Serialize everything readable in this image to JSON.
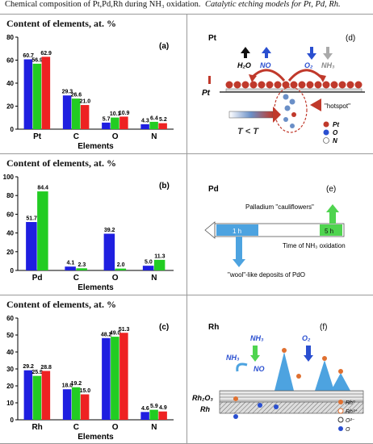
{
  "header": {
    "left": "Chemical composition of Pt,Pd,Rh during NH₃ oxidation.",
    "right": "Catalytic etching models for Pt, Pd, Rh."
  },
  "chart_data": [
    {
      "type": "bar",
      "panel": "(a)",
      "title": "Content of elements, at. %",
      "xlabel": "Elements",
      "categories": [
        "Pt",
        "C",
        "O",
        "N"
      ],
      "ylim": [
        0,
        80
      ],
      "yticks": [
        0,
        20,
        40,
        60,
        80
      ],
      "series": [
        {
          "color": "#1f1fe0",
          "values": [
            60.7,
            29.3,
            5.7,
            4.3
          ]
        },
        {
          "color": "#22cc22",
          "values": [
            56.9,
            26.6,
            10.1,
            6.4
          ]
        },
        {
          "color": "#ee2222",
          "values": [
            62.9,
            21.0,
            10.9,
            5.2
          ]
        }
      ]
    },
    {
      "type": "bar",
      "panel": "(b)",
      "title": "Content of elements, at. %",
      "xlabel": "Elements",
      "categories": [
        "Pd",
        "C",
        "O",
        "N"
      ],
      "ylim": [
        0,
        100
      ],
      "yticks": [
        0,
        20,
        40,
        60,
        80,
        100
      ],
      "series": [
        {
          "color": "#1f1fe0",
          "values": [
            51.7,
            4.1,
            39.2,
            5.0
          ]
        },
        {
          "color": "#22cc22",
          "values": [
            84.4,
            2.3,
            2.0,
            11.3
          ]
        }
      ]
    },
    {
      "type": "bar",
      "panel": "(c)",
      "title": "Content of elements, at. %",
      "xlabel": "Elements",
      "categories": [
        "Rh",
        "C",
        "O",
        "N"
      ],
      "ylim": [
        0,
        60
      ],
      "yticks": [
        0,
        10,
        20,
        30,
        40,
        50,
        60
      ],
      "series": [
        {
          "color": "#1f1fe0",
          "values": [
            29.2,
            18.0,
            48.2,
            4.6
          ]
        },
        {
          "color": "#22cc22",
          "values": [
            25.9,
            19.2,
            49.0,
            5.9
          ]
        },
        {
          "color": "#ee2222",
          "values": [
            28.8,
            15.0,
            51.3,
            4.9
          ]
        }
      ]
    }
  ],
  "models": {
    "d": {
      "label": "(d)",
      "metal": "Pt",
      "surface": "Pt",
      "gases": [
        "H₂O",
        "NO",
        "O₂",
        "NH₃"
      ],
      "hotspot": "\"hotspot\"",
      "temp": "T < T",
      "legend": [
        "Pt",
        "O",
        "N"
      ]
    },
    "e": {
      "label": "(e)",
      "metal": "Pd",
      "top_note": "Palladium \"cauliflowers\"",
      "t1": "1 h",
      "t5": "5 h",
      "axis": "Time of NH₃ oxidation",
      "bottom_note": "\"wool\"-like deposits of PdO"
    },
    "f": {
      "label": "(f)",
      "metal": "Rh",
      "gases": [
        "NH₃",
        "O₂",
        "NH₃",
        "NO"
      ],
      "layers": [
        "Rh₂O₃",
        "Rh"
      ],
      "legend": [
        "Rh⁰",
        "Rh³⁺",
        "O²⁻",
        "O"
      ]
    }
  }
}
